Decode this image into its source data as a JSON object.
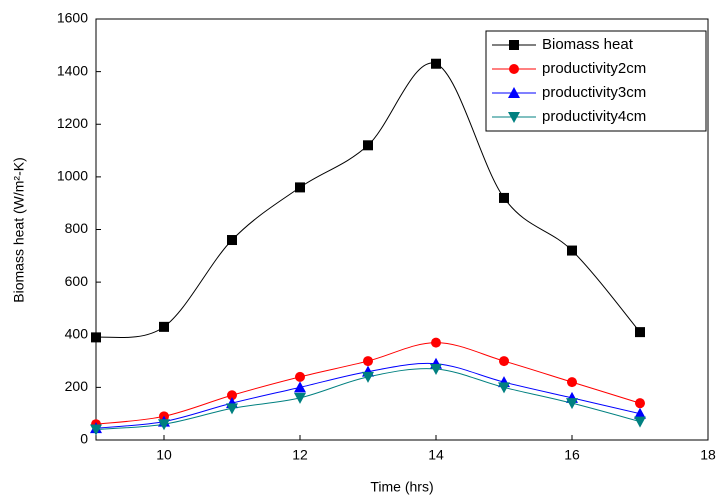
{
  "chart_data": {
    "type": "line",
    "x_label": "Time (hrs)",
    "y_label": "Biomass heat (W/m²-K)",
    "x": [
      9,
      10,
      11,
      12,
      13,
      14,
      15,
      16,
      17
    ],
    "series": [
      {
        "name": "Biomass heat",
        "color": "#000000",
        "marker": "square",
        "values": [
          390,
          430,
          760,
          960,
          1120,
          1430,
          920,
          720,
          410
        ]
      },
      {
        "name": "productivity2cm",
        "color": "#ff0000",
        "marker": "circle",
        "values": [
          60,
          90,
          170,
          240,
          300,
          370,
          300,
          220,
          140
        ]
      },
      {
        "name": "productivity3cm",
        "color": "#0000ff",
        "marker": "triangle-up",
        "values": [
          45,
          70,
          140,
          200,
          260,
          290,
          220,
          160,
          100
        ]
      },
      {
        "name": "productivity4cm",
        "color": "#008080",
        "marker": "triangle-down",
        "values": [
          40,
          60,
          120,
          160,
          240,
          270,
          200,
          140,
          70
        ]
      }
    ],
    "xlim": [
      9,
      18
    ],
    "xticks": [
      10,
      12,
      14,
      16,
      18
    ],
    "ylim": [
      0,
      1600
    ],
    "yticks": [
      0,
      200,
      400,
      600,
      800,
      1000,
      1200,
      1400,
      1600
    ],
    "legend": "top-right"
  }
}
